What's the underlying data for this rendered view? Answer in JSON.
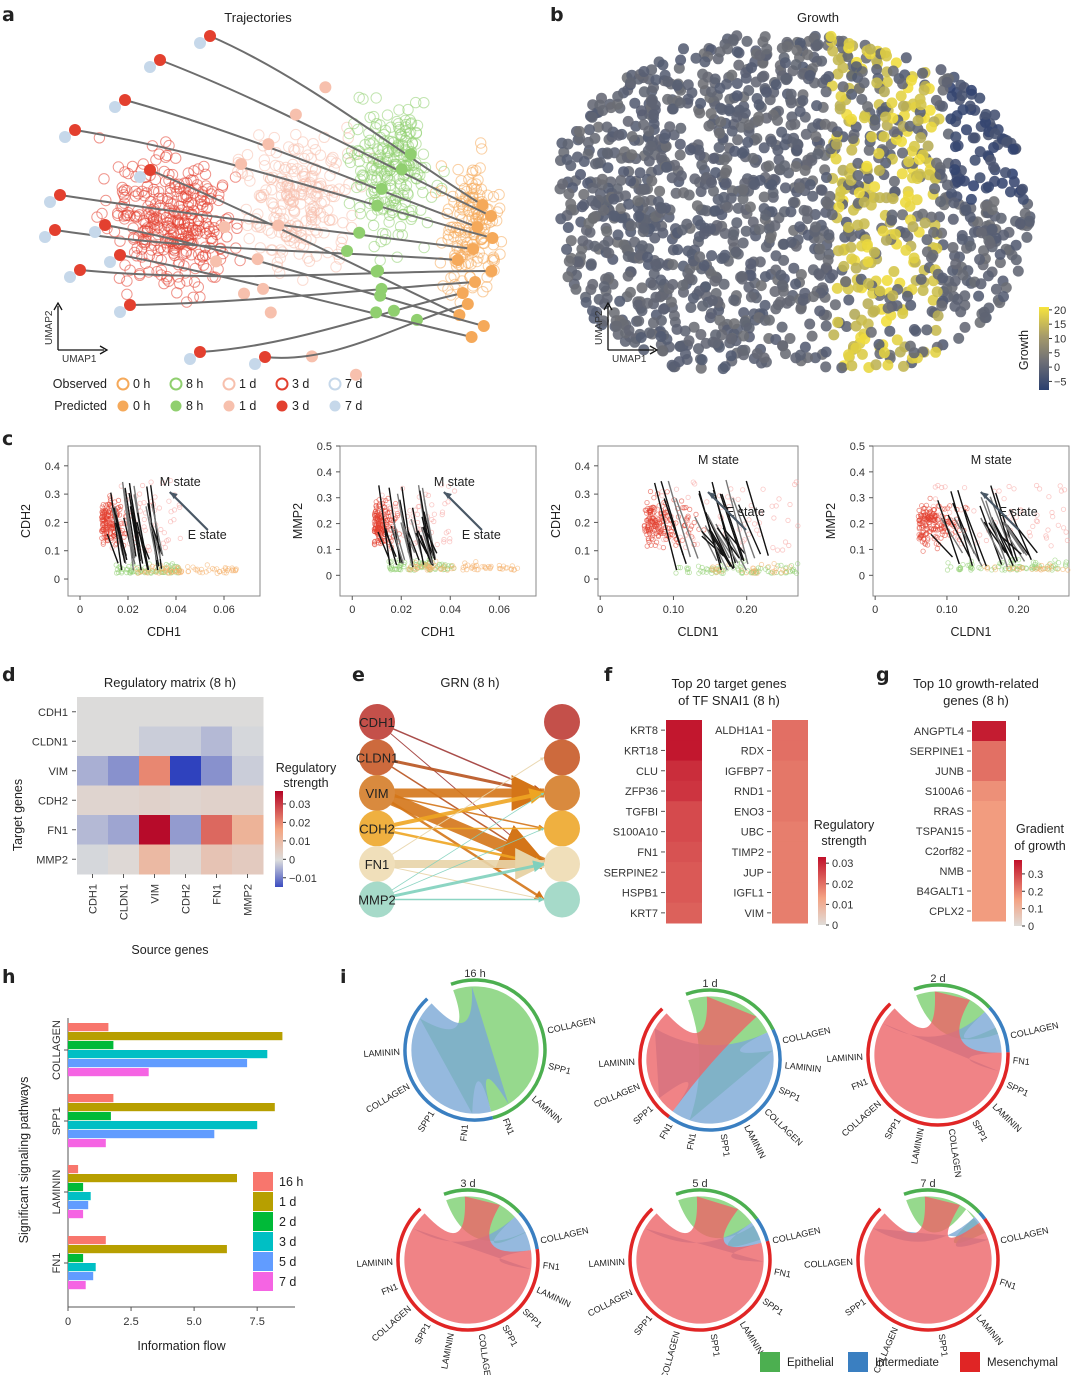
{
  "panels": {
    "a": {
      "letter": "a",
      "title": "Trajectories",
      "axis_x": "UMAP1",
      "axis_y": "UMAP2",
      "legend": {
        "observed_label": "Observed",
        "predicted_label": "Predicted",
        "times": [
          "0 h",
          "8 h",
          "1 d",
          "3 d",
          "7 d"
        ],
        "colors": [
          "#f5a95a",
          "#90cf6f",
          "#f7c0ad",
          "#e3402f",
          "#c6d8ea"
        ]
      }
    },
    "b": {
      "letter": "b",
      "title": "Growth",
      "axis_x": "UMAP1",
      "axis_y": "UMAP2",
      "colorbar": {
        "label": "Growth",
        "ticks": [
          "20",
          "15",
          "10",
          "5",
          "0",
          "−5"
        ],
        "min": -8,
        "max": 21,
        "color_low": "#2a3f6e",
        "color_mid": "#7b7b7b",
        "color_high": "#f7e43c"
      }
    },
    "c": {
      "letter": "c",
      "plots": [
        {
          "xlabel": "CDH1",
          "ylabel": "CDH2",
          "xticks": [
            "0",
            "0.02",
            "0.04",
            "0.06"
          ],
          "yticks": [
            "0",
            "0.1",
            "0.2",
            "0.3",
            "0.4"
          ],
          "annot_m": "M state",
          "annot_e": "E state"
        },
        {
          "xlabel": "CDH1",
          "ylabel": "MMP2",
          "xticks": [
            "0",
            "0.02",
            "0.04",
            "0.06"
          ],
          "yticks": [
            "0",
            "0.1",
            "0.2",
            "0.3",
            "0.4",
            "0.5"
          ],
          "annot_m": "M state",
          "annot_e": "E state"
        },
        {
          "xlabel": "CLDN1",
          "ylabel": "CDH2",
          "xticks": [
            "0",
            "0.10",
            "0.20"
          ],
          "yticks": [
            "0",
            "0.1",
            "0.2",
            "0.3",
            "0.4"
          ],
          "annot_m": "M state",
          "annot_e": "E state"
        },
        {
          "xlabel": "CLDN1",
          "ylabel": "MMP2",
          "xticks": [
            "0",
            "0.10",
            "0.20"
          ],
          "yticks": [
            "0",
            "0.1",
            "0.2",
            "0.3",
            "0.4",
            "0.5"
          ],
          "annot_m": "M state",
          "annot_e": "E state"
        }
      ]
    },
    "d": {
      "letter": "d",
      "title": "Regulatory matrix (8 h)",
      "xlabel": "Source genes",
      "ylabel": "Target genes",
      "colorbar_label_1": "Regulatory",
      "colorbar_label_2": "strength",
      "colorbar_ticks": [
        "0.03",
        "0.02",
        "0.01",
        "0",
        "−0.01"
      ]
    },
    "e": {
      "letter": "e",
      "title": "GRN (8 h)",
      "nodes": [
        "CDH1",
        "CLDN1",
        "VIM",
        "CDH2",
        "FN1",
        "MMP2"
      ],
      "node_colors": [
        "#c4504a",
        "#cd6a3d",
        "#d98a3e",
        "#efb040",
        "#f0dfba",
        "#a6dac9"
      ]
    },
    "f": {
      "letter": "f",
      "title_1": "Top 20 target genes",
      "title_2": "of TF SNAI1 (8 h)",
      "colorbar_label_1": "Regulatory",
      "colorbar_label_2": "strength",
      "colorbar_ticks": [
        "0.03",
        "0.02",
        "0.01",
        "0"
      ]
    },
    "g": {
      "letter": "g",
      "title_1": "Top 10 growth-related",
      "title_2": "genes (8 h)",
      "colorbar_label_1": "Gradient",
      "colorbar_label_2": "of growth",
      "colorbar_ticks": [
        "0.3",
        "0.2",
        "0.1",
        "0"
      ]
    },
    "h": {
      "letter": "h"
    },
    "i": {
      "letter": "i",
      "legend": [
        {
          "label": "Epithelial",
          "color": "#4caf50"
        },
        {
          "label": "Intermediate",
          "color": "#3a7fc1"
        },
        {
          "label": "Mesenchymal",
          "color": "#e02525"
        }
      ],
      "chords": [
        {
          "title": "16 h",
          "mix": [
            0.55,
            0.45,
            0.0
          ],
          "labels": [
            "LAMININ",
            "COLLAGEN",
            "SPP1",
            "FN1",
            "FN1",
            "LAMININ",
            "SPP1",
            "COLLAGEN"
          ]
        },
        {
          "title": "1 d",
          "mix": [
            0.25,
            0.45,
            0.3
          ],
          "labels": [
            "LAMININ",
            "COLLAGEN",
            "SPP1",
            "FN1",
            "FN1",
            "SPP1",
            "LAMININ",
            "COLLAGEN",
            "SPP1",
            "LAMININ",
            "COLLAGEN"
          ]
        },
        {
          "title": "2 d",
          "mix": [
            0.2,
            0.12,
            0.68
          ],
          "labels": [
            "LAMININ",
            "FN1",
            "COLLAGEN",
            "SPP1",
            "LAMININ",
            "COLLAGEN",
            "SPP1",
            "LAMININ",
            "SPP1",
            "FN1",
            "COLLAGEN"
          ]
        },
        {
          "title": "3 d",
          "mix": [
            0.2,
            0.1,
            0.7
          ],
          "labels": [
            "LAMININ",
            "FN1",
            "COLLAGEN",
            "SPP1",
            "LAMININ",
            "COLLAGEN",
            "SPP1",
            "SPP1",
            "LAMININ",
            "FN1",
            "COLLAGEN"
          ]
        },
        {
          "title": "5 d",
          "mix": [
            0.22,
            0.06,
            0.72
          ],
          "labels": [
            "LAMININ",
            "COLLAGEN",
            "SPP1",
            "COLLAGEN",
            "SPP1",
            "LAMININ",
            "SPP1",
            "FN1",
            "COLLAGEN"
          ]
        },
        {
          "title": "7 d",
          "mix": [
            0.2,
            0.02,
            0.78
          ],
          "labels": [
            "COLLAGEN",
            "SPP1",
            "COLLAGEN",
            "SPP1",
            "LAMININ",
            "FN1",
            "COLLAGEN"
          ]
        }
      ]
    }
  },
  "chart_data": [
    {
      "id": "a",
      "type": "scatter",
      "title": "Trajectories",
      "xlabel": "UMAP1",
      "ylabel": "UMAP2",
      "series": [
        {
          "name": "Observed 0 h"
        },
        {
          "name": "Observed 8 h"
        },
        {
          "name": "Observed 1 d"
        },
        {
          "name": "Observed 3 d"
        },
        {
          "name": "Observed 7 d"
        },
        {
          "name": "Predicted 0 h"
        },
        {
          "name": "Predicted 8 h"
        },
        {
          "name": "Predicted 1 d"
        },
        {
          "name": "Predicted 3 d"
        },
        {
          "name": "Predicted 7 d"
        }
      ],
      "legend": "bottom"
    },
    {
      "id": "b",
      "type": "scatter",
      "title": "Growth",
      "xlabel": "UMAP1",
      "ylabel": "UMAP2",
      "colorbar": "Growth",
      "crange": [
        -8,
        21
      ]
    },
    {
      "id": "c",
      "type": "scatter",
      "subplots": [
        {
          "xlabel": "CDH1",
          "ylabel": "CDH2",
          "xlim": [
            -0.005,
            0.075
          ],
          "ylim": [
            -0.06,
            0.47
          ]
        },
        {
          "xlabel": "CDH1",
          "ylabel": "MMP2",
          "xlim": [
            -0.005,
            0.075
          ],
          "ylim": [
            -0.08,
            0.5
          ]
        },
        {
          "xlabel": "CLDN1",
          "ylabel": "CDH2",
          "xlim": [
            -0.003,
            0.27
          ],
          "ylim": [
            -0.06,
            0.47
          ]
        },
        {
          "xlabel": "CLDN1",
          "ylabel": "MMP2",
          "xlim": [
            -0.003,
            0.27
          ],
          "ylim": [
            -0.08,
            0.5
          ]
        }
      ],
      "annotations": [
        "M state",
        "E state"
      ]
    },
    {
      "id": "d",
      "type": "heatmap",
      "title": "Regulatory matrix (8 h)",
      "xlabel": "Source genes",
      "ylabel": "Target genes",
      "x": [
        "CDH1",
        "CLDN1",
        "VIM",
        "CDH2",
        "FN1",
        "MMP2"
      ],
      "y": [
        "CDH1",
        "CLDN1",
        "VIM",
        "CDH2",
        "FN1",
        "MMP2"
      ],
      "values": [
        [
          0,
          0,
          0,
          0,
          0,
          0
        ],
        [
          0,
          0,
          -0.002,
          -0.002,
          -0.004,
          -0.001
        ],
        [
          -0.005,
          -0.008,
          0.02,
          -0.016,
          -0.008,
          -0.002
        ],
        [
          0.002,
          0.002,
          0.003,
          0.002,
          0.003,
          0.003
        ],
        [
          -0.004,
          -0.006,
          0.036,
          -0.007,
          0.024,
          0.012
        ],
        [
          -0.001,
          0.001,
          0.01,
          0.001,
          0.007,
          0.005
        ]
      ],
      "crange": [
        -0.015,
        0.037
      ],
      "colorbar": "Regulatory strength"
    },
    {
      "id": "e",
      "type": "network",
      "title": "GRN (8 h)",
      "nodes": [
        "CDH1",
        "CLDN1",
        "VIM",
        "CDH2",
        "FN1",
        "MMP2"
      ],
      "edges": [
        {
          "from": "CDH1",
          "to": "VIM",
          "w": 1.5
        },
        {
          "from": "CDH1",
          "to": "FN1",
          "w": 1
        },
        {
          "from": "CLDN1",
          "to": "VIM",
          "w": 3
        },
        {
          "from": "CLDN1",
          "to": "FN1",
          "w": 1.5
        },
        {
          "from": "VIM",
          "to": "VIM",
          "w": 9
        },
        {
          "from": "VIM",
          "to": "FN1",
          "w": 12
        },
        {
          "from": "VIM",
          "to": "CDH2",
          "w": 1.5
        },
        {
          "from": "VIM",
          "to": "MMP2",
          "w": 2.5
        },
        {
          "from": "CDH2",
          "to": "VIM",
          "w": 4
        },
        {
          "from": "CDH2",
          "to": "CDH2",
          "w": 1.5
        },
        {
          "from": "CDH2",
          "to": "FN1",
          "w": 2.5
        },
        {
          "from": "FN1",
          "to": "FN1",
          "w": 8
        },
        {
          "from": "FN1",
          "to": "CLDN1",
          "w": 1
        },
        {
          "from": "FN1",
          "to": "MMP2",
          "w": 1
        },
        {
          "from": "MMP2",
          "to": "FN1",
          "w": 3
        },
        {
          "from": "MMP2",
          "to": "MMP2",
          "w": 1.5
        },
        {
          "from": "MMP2",
          "to": "VIM",
          "w": 0.8
        },
        {
          "from": "MMP2",
          "to": "CDH2",
          "w": 0.8
        }
      ]
    },
    {
      "id": "f",
      "type": "heatmap",
      "title": "Top 20 target genes of TF SNAI1 (8 h)",
      "columns": [
        {
          "genes": [
            "KRT8",
            "KRT18",
            "CLU",
            "ZFP36",
            "TGFBI",
            "S100A10",
            "FN1",
            "SERPINE2",
            "HSPB1",
            "KRT7"
          ],
          "values": [
            0.032,
            0.032,
            0.029,
            0.028,
            0.025,
            0.025,
            0.024,
            0.023,
            0.023,
            0.022
          ]
        },
        {
          "genes": [
            "ALDH1A1",
            "RDX",
            "IGFBP7",
            "RND1",
            "ENO3",
            "UBC",
            "TIMP2",
            "JUP",
            "IGFL1",
            "VIM"
          ],
          "values": [
            0.02,
            0.02,
            0.019,
            0.019,
            0.019,
            0.018,
            0.018,
            0.018,
            0.018,
            0.018
          ]
        }
      ],
      "crange": [
        0,
        0.033
      ],
      "colorbar": "Regulatory strength"
    },
    {
      "id": "g",
      "type": "heatmap",
      "title": "Top 10 growth-related genes (8 h)",
      "genes": [
        "ANGPTL4",
        "SERPINE1",
        "JUNB",
        "S100A6",
        "RRAS",
        "TSPAN15",
        "C2orf82",
        "NMB",
        "B4GALT1",
        "CPLX2"
      ],
      "values": [
        0.36,
        0.23,
        0.23,
        0.18,
        0.16,
        0.16,
        0.16,
        0.16,
        0.16,
        0.16
      ],
      "crange": [
        0,
        0.38
      ],
      "colorbar": "Gradient of growth"
    },
    {
      "id": "h",
      "type": "bar",
      "orientation": "horizontal",
      "xlabel": "Information flow",
      "ylabel": "Significant signaling pathways",
      "categories": [
        "COLLAGEN",
        "SPP1",
        "LAMININ",
        "FN1"
      ],
      "xticks": [
        "0",
        "2.5",
        "5.0",
        "7.5"
      ],
      "xlim": [
        0,
        9
      ],
      "series": [
        {
          "name": "16 h",
          "color": "#f8766d",
          "values": [
            1.6,
            1.8,
            0.4,
            1.5
          ]
        },
        {
          "name": "1 d",
          "color": "#b79f00",
          "values": [
            8.5,
            8.2,
            6.7,
            6.3
          ]
        },
        {
          "name": "2 d",
          "color": "#00ba38",
          "values": [
            1.8,
            1.7,
            0.6,
            0.6
          ]
        },
        {
          "name": "3 d",
          "color": "#00bfc4",
          "values": [
            7.9,
            7.5,
            0.9,
            1.1
          ]
        },
        {
          "name": "5 d",
          "color": "#619cff",
          "values": [
            7.1,
            5.8,
            0.8,
            1.0
          ]
        },
        {
          "name": "7 d",
          "color": "#f564e3",
          "values": [
            3.2,
            1.5,
            0.6,
            0.7
          ]
        }
      ],
      "legend": "right"
    },
    {
      "id": "i",
      "type": "chord",
      "titles": [
        "16 h",
        "1 d",
        "2 d",
        "3 d",
        "5 d",
        "7 d"
      ],
      "groups": [
        "Epithelial",
        "Intermediate",
        "Mesenchymal"
      ],
      "legend": "bottom-right"
    }
  ]
}
